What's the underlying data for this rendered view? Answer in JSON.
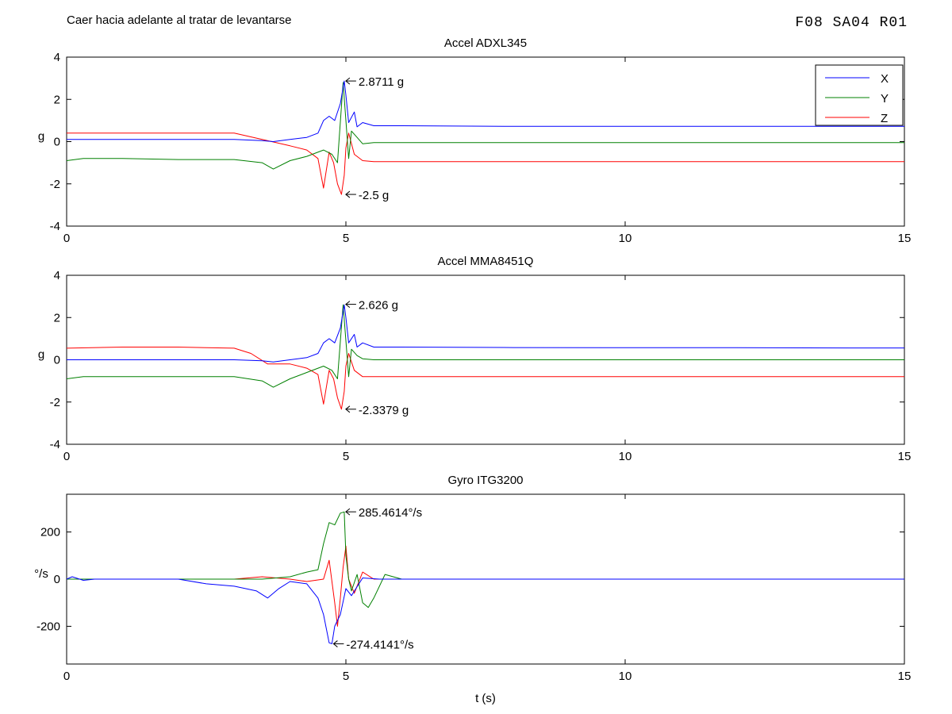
{
  "figure": {
    "title": "Caer hacia adelante al tratar de levantarse",
    "code": "F08  SA04  R01"
  },
  "chart_data": [
    {
      "type": "line",
      "title": "Accel ADXL345",
      "xlabel": "",
      "ylabel": "g",
      "xlim": [
        0,
        15
      ],
      "ylim": [
        -4,
        4
      ],
      "xticks": [
        "0",
        "5",
        "10",
        "15"
      ],
      "yticks": [
        "-4",
        "-2",
        "0",
        "2",
        "4"
      ],
      "legend": {
        "position": "top-right",
        "entries": [
          "X",
          "Y",
          "Z"
        ]
      },
      "series": [
        {
          "name": "X",
          "color": "#0000ff",
          "x": [
            0,
            1,
            2,
            3,
            3.5,
            3.7,
            4,
            4.3,
            4.5,
            4.6,
            4.7,
            4.8,
            4.9,
            4.97,
            5.0,
            5.05,
            5.15,
            5.2,
            5.3,
            5.5,
            6,
            8,
            10,
            12,
            14,
            15
          ],
          "y": [
            0.1,
            0.1,
            0.1,
            0.1,
            0.05,
            0,
            0.1,
            0.2,
            0.4,
            1,
            1.2,
            1.0,
            1.8,
            2.87,
            2.2,
            0.9,
            1.4,
            0.7,
            0.9,
            0.75,
            0.75,
            0.72,
            0.72,
            0.72,
            0.72,
            0.72
          ]
        },
        {
          "name": "Y",
          "color": "#008000",
          "x": [
            0,
            0.3,
            1,
            2,
            3,
            3.5,
            3.7,
            4,
            4.3,
            4.6,
            4.75,
            4.85,
            4.95,
            5.0,
            5.05,
            5.1,
            5.2,
            5.3,
            5.5,
            6,
            8,
            10,
            12,
            14,
            15
          ],
          "y": [
            -0.9,
            -0.8,
            -0.8,
            -0.85,
            -0.85,
            -1.0,
            -1.3,
            -0.9,
            -0.7,
            -0.4,
            -0.6,
            -1.0,
            2.8,
            1.0,
            -0.8,
            0.5,
            0.2,
            -0.1,
            -0.05,
            -0.05,
            -0.05,
            -0.05,
            -0.05,
            -0.05,
            -0.05
          ]
        },
        {
          "name": "Z",
          "color": "#ff0000",
          "x": [
            0,
            1,
            2,
            3,
            3.5,
            4,
            4.3,
            4.5,
            4.6,
            4.7,
            4.78,
            4.85,
            4.92,
            4.97,
            5.0,
            5.05,
            5.15,
            5.3,
            5.5,
            6,
            8,
            10,
            12,
            14,
            15
          ],
          "y": [
            0.4,
            0.4,
            0.4,
            0.4,
            0.1,
            -0.2,
            -0.4,
            -0.8,
            -2.2,
            -0.5,
            -1.0,
            -2.0,
            -2.5,
            -1.6,
            -0.3,
            0.4,
            -0.6,
            -0.9,
            -0.95,
            -0.95,
            -0.95,
            -0.95,
            -0.95,
            -0.95,
            -0.95
          ]
        }
      ],
      "annotations": [
        {
          "text": "2.8711 g",
          "x": 4.97,
          "y": 2.87
        },
        {
          "text": "-2.5 g",
          "x": 4.97,
          "y": -2.5
        }
      ]
    },
    {
      "type": "line",
      "title": "Accel MMA8451Q",
      "xlabel": "",
      "ylabel": "g",
      "xlim": [
        0,
        15
      ],
      "ylim": [
        -4,
        4
      ],
      "xticks": [
        "0",
        "5",
        "10",
        "15"
      ],
      "yticks": [
        "-4",
        "-2",
        "0",
        "2",
        "4"
      ],
      "series": [
        {
          "name": "X",
          "color": "#0000ff",
          "x": [
            0,
            1,
            2,
            3,
            3.5,
            3.7,
            4,
            4.3,
            4.5,
            4.6,
            4.7,
            4.8,
            4.9,
            4.97,
            5.0,
            5.05,
            5.15,
            5.2,
            5.3,
            5.5,
            6,
            8,
            10,
            12,
            14,
            15
          ],
          "y": [
            0,
            0,
            0,
            0,
            -0.05,
            -0.1,
            0,
            0.1,
            0.3,
            0.8,
            1.0,
            0.8,
            1.5,
            2.6,
            2.0,
            0.8,
            1.2,
            0.6,
            0.8,
            0.6,
            0.6,
            0.58,
            0.57,
            0.57,
            0.56,
            0.56
          ]
        },
        {
          "name": "Y",
          "color": "#008000",
          "x": [
            0,
            0.3,
            1,
            2,
            3,
            3.5,
            3.7,
            4,
            4.3,
            4.6,
            4.75,
            4.85,
            4.95,
            5.0,
            5.05,
            5.1,
            5.2,
            5.3,
            5.5,
            6,
            8,
            10,
            12,
            14,
            15
          ],
          "y": [
            -0.9,
            -0.8,
            -0.8,
            -0.8,
            -0.8,
            -1.0,
            -1.3,
            -0.9,
            -0.6,
            -0.3,
            -0.5,
            -0.9,
            2.6,
            0.9,
            -0.8,
            0.5,
            0.2,
            0.05,
            0,
            0,
            0,
            0,
            0,
            0,
            0
          ]
        },
        {
          "name": "Z",
          "color": "#ff0000",
          "x": [
            0,
            1,
            2,
            3,
            3.3,
            3.6,
            4,
            4.3,
            4.5,
            4.6,
            4.7,
            4.78,
            4.85,
            4.92,
            4.97,
            5.0,
            5.05,
            5.15,
            5.3,
            5.5,
            6,
            8,
            10,
            12,
            14,
            15
          ],
          "y": [
            0.55,
            0.6,
            0.6,
            0.55,
            0.3,
            -0.2,
            -0.2,
            -0.4,
            -0.7,
            -2.1,
            -0.5,
            -0.9,
            -1.8,
            -2.34,
            -1.5,
            -0.3,
            0.3,
            -0.5,
            -0.8,
            -0.8,
            -0.8,
            -0.8,
            -0.8,
            -0.8,
            -0.8,
            -0.8
          ]
        }
      ],
      "annotations": [
        {
          "text": "2.626 g",
          "x": 4.97,
          "y": 2.626
        },
        {
          "text": "-2.3379 g",
          "x": 4.97,
          "y": -2.34
        }
      ]
    },
    {
      "type": "line",
      "title": "Gyro ITG3200",
      "xlabel": "t (s)",
      "ylabel": "°/s",
      "xlim": [
        0,
        15
      ],
      "ylim": [
        -360,
        360
      ],
      "xticks": [
        "0",
        "5",
        "10",
        "15"
      ],
      "yticks": [
        "-200",
        "0",
        "200"
      ],
      "series": [
        {
          "name": "X",
          "color": "#0000ff",
          "x": [
            0,
            0.1,
            0.3,
            0.5,
            1,
            2,
            2.5,
            3,
            3.4,
            3.6,
            3.8,
            4,
            4.3,
            4.5,
            4.6,
            4.7,
            4.75,
            4.8,
            4.9,
            5.0,
            5.1,
            5.3,
            5.6,
            6,
            7,
            8,
            10,
            12,
            15
          ],
          "y": [
            0,
            10,
            -5,
            0,
            0,
            0,
            -20,
            -30,
            -50,
            -80,
            -40,
            -10,
            -20,
            -80,
            -150,
            -270,
            -274,
            -200,
            -150,
            -40,
            -70,
            5,
            0,
            0,
            0,
            0,
            0,
            0,
            0
          ]
        },
        {
          "name": "Y",
          "color": "#008000",
          "x": [
            0,
            1,
            2,
            3,
            3.5,
            4,
            4.3,
            4.5,
            4.6,
            4.7,
            4.8,
            4.9,
            4.97,
            5.0,
            5.05,
            5.1,
            5.2,
            5.3,
            5.4,
            5.5,
            5.7,
            6,
            8,
            10,
            15
          ],
          "y": [
            0,
            0,
            0,
            0,
            0,
            10,
            30,
            40,
            150,
            240,
            230,
            280,
            285,
            100,
            0,
            -50,
            20,
            -100,
            -120,
            -80,
            20,
            0,
            0,
            0,
            0
          ]
        },
        {
          "name": "Z",
          "color": "#ff0000",
          "x": [
            0,
            1,
            2,
            3,
            3.5,
            4,
            4.3,
            4.6,
            4.7,
            4.8,
            4.85,
            4.9,
            4.95,
            5.0,
            5.05,
            5.15,
            5.3,
            5.5,
            6,
            8,
            10,
            15
          ],
          "y": [
            0,
            0,
            0,
            0,
            10,
            0,
            -10,
            0,
            80,
            -100,
            -200,
            -80,
            50,
            140,
            0,
            -60,
            30,
            0,
            0,
            0,
            0,
            0
          ]
        }
      ],
      "annotations": [
        {
          "text": "285.4614°/s",
          "x": 4.97,
          "y": 285.46
        },
        {
          "text": "-274.4141°/s",
          "x": 4.75,
          "y": -274.41
        }
      ]
    }
  ]
}
